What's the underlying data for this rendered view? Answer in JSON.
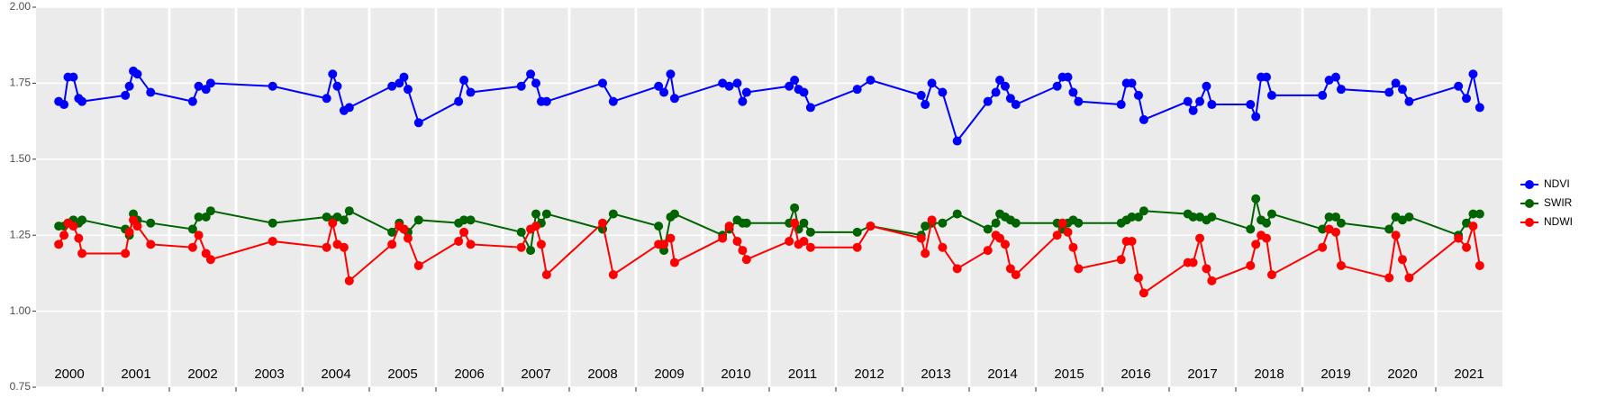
{
  "chart_data": {
    "type": "line",
    "x": [
      2000.34,
      2000.42,
      2000.48,
      2000.56,
      2000.64,
      2000.69,
      2001.34,
      2001.4,
      2001.46,
      2001.52,
      2001.72,
      2002.35,
      2002.44,
      2002.55,
      2002.62,
      2003.55,
      2004.36,
      2004.45,
      2004.52,
      2004.62,
      2004.7,
      2005.34,
      2005.45,
      2005.52,
      2005.58,
      2005.74,
      2006.34,
      2006.42,
      2006.52,
      2007.28,
      2007.42,
      2007.5,
      2007.58,
      2007.66,
      2008.5,
      2008.66,
      2009.34,
      2009.42,
      2009.52,
      2009.58,
      2010.3,
      2010.4,
      2010.52,
      2010.6,
      2010.66,
      2011.3,
      2011.38,
      2011.44,
      2011.52,
      2011.62,
      2012.32,
      2012.52,
      2013.28,
      2013.34,
      2013.44,
      2013.6,
      2013.82,
      2014.28,
      2014.4,
      2014.46,
      2014.54,
      2014.62,
      2014.7,
      2015.32,
      2015.4,
      2015.48,
      2015.56,
      2015.64,
      2016.28,
      2016.36,
      2016.44,
      2016.54,
      2016.62,
      2017.28,
      2017.36,
      2017.46,
      2017.56,
      2017.64,
      2018.22,
      2018.3,
      2018.38,
      2018.46,
      2018.54,
      2019.3,
      2019.4,
      2019.5,
      2019.58,
      2020.3,
      2020.4,
      2020.5,
      2020.6,
      2021.34,
      2021.46,
      2021.56,
      2021.66
    ],
    "series": [
      {
        "name": "NDVI",
        "color": "#0000ff",
        "values": [
          1.69,
          1.68,
          1.77,
          1.77,
          1.7,
          1.69,
          1.71,
          1.74,
          1.79,
          1.78,
          1.72,
          1.69,
          1.74,
          1.73,
          1.75,
          1.74,
          1.7,
          1.78,
          1.74,
          1.66,
          1.67,
          1.74,
          1.75,
          1.77,
          1.73,
          1.62,
          1.69,
          1.76,
          1.72,
          1.74,
          1.78,
          1.75,
          1.69,
          1.69,
          1.75,
          1.69,
          1.74,
          1.72,
          1.78,
          1.7,
          1.75,
          1.74,
          1.75,
          1.69,
          1.72,
          1.74,
          1.76,
          1.73,
          1.72,
          1.67,
          1.73,
          1.76,
          1.71,
          1.68,
          1.75,
          1.72,
          1.56,
          1.69,
          1.72,
          1.76,
          1.74,
          1.7,
          1.68,
          1.74,
          1.77,
          1.77,
          1.72,
          1.69,
          1.68,
          1.75,
          1.75,
          1.71,
          1.63,
          1.69,
          1.66,
          1.69,
          1.74,
          1.68,
          1.68,
          1.64,
          1.77,
          1.77,
          1.71,
          1.71,
          1.76,
          1.77,
          1.73,
          1.72,
          1.75,
          1.73,
          1.69,
          1.74,
          1.7,
          1.78,
          1.67
        ]
      },
      {
        "name": "SWIR",
        "color": "#006400",
        "values": [
          1.28,
          1.28,
          1.29,
          1.3,
          1.29,
          1.3,
          1.27,
          1.25,
          1.32,
          1.3,
          1.29,
          1.27,
          1.31,
          1.31,
          1.33,
          1.29,
          1.31,
          1.3,
          1.31,
          1.3,
          1.33,
          1.26,
          1.29,
          1.27,
          1.26,
          1.3,
          1.29,
          1.3,
          1.3,
          1.26,
          1.2,
          1.32,
          1.29,
          1.32,
          1.27,
          1.32,
          1.28,
          1.2,
          1.31,
          1.32,
          1.25,
          1.27,
          1.3,
          1.29,
          1.29,
          1.29,
          1.34,
          1.27,
          1.29,
          1.26,
          1.26,
          1.28,
          1.25,
          1.28,
          1.29,
          1.29,
          1.32,
          1.27,
          1.29,
          1.32,
          1.31,
          1.3,
          1.29,
          1.29,
          1.27,
          1.29,
          1.3,
          1.29,
          1.29,
          1.3,
          1.31,
          1.31,
          1.33,
          1.32,
          1.31,
          1.31,
          1.3,
          1.31,
          1.27,
          1.37,
          1.3,
          1.29,
          1.32,
          1.27,
          1.31,
          1.31,
          1.29,
          1.27,
          1.31,
          1.3,
          1.31,
          1.25,
          1.29,
          1.32,
          1.32
        ]
      },
      {
        "name": "NDWI",
        "color": "#ff0000",
        "values": [
          1.22,
          1.25,
          1.29,
          1.28,
          1.24,
          1.19,
          1.19,
          1.26,
          1.3,
          1.28,
          1.22,
          1.21,
          1.25,
          1.19,
          1.17,
          1.23,
          1.21,
          1.29,
          1.22,
          1.21,
          1.1,
          1.22,
          1.28,
          1.27,
          1.24,
          1.15,
          1.23,
          1.26,
          1.22,
          1.21,
          1.27,
          1.28,
          1.22,
          1.12,
          1.29,
          1.12,
          1.22,
          1.22,
          1.24,
          1.16,
          1.24,
          1.28,
          1.23,
          1.2,
          1.17,
          1.23,
          1.29,
          1.22,
          1.23,
          1.21,
          1.21,
          1.28,
          1.24,
          1.19,
          1.3,
          1.21,
          1.14,
          1.2,
          1.25,
          1.24,
          1.22,
          1.14,
          1.12,
          1.25,
          1.29,
          1.26,
          1.21,
          1.14,
          1.17,
          1.23,
          1.23,
          1.11,
          1.06,
          1.16,
          1.16,
          1.24,
          1.14,
          1.1,
          1.15,
          1.22,
          1.25,
          1.24,
          1.12,
          1.21,
          1.27,
          1.26,
          1.15,
          1.11,
          1.25,
          1.17,
          1.11,
          1.24,
          1.21,
          1.28,
          1.15
        ]
      }
    ],
    "xlim": [
      2000,
      2022
    ],
    "xticks": [
      2001,
      2002,
      2003,
      2004,
      2005,
      2006,
      2007,
      2008,
      2009,
      2010,
      2011,
      2012,
      2013,
      2014,
      2015,
      2016,
      2017,
      2018,
      2019,
      2020,
      2021
    ],
    "year_labels": [
      "2000",
      "2001",
      "2002",
      "2003",
      "2004",
      "2005",
      "2006",
      "2007",
      "2008",
      "2009",
      "2010",
      "2011",
      "2012",
      "2013",
      "2014",
      "2015",
      "2016",
      "2017",
      "2018",
      "2019",
      "2020",
      "2021"
    ],
    "ylim": [
      0.75,
      2.0
    ],
    "yticks": [
      {
        "value": 0.75,
        "label": "0.75"
      },
      {
        "value": 1.0,
        "label": "1.00"
      },
      {
        "value": 1.25,
        "label": "1.25"
      },
      {
        "value": 1.5,
        "label": "1.50"
      },
      {
        "value": 1.75,
        "label": "1.75"
      },
      {
        "value": 2.0,
        "label": "2.00"
      }
    ],
    "grid": true,
    "legend": "right"
  }
}
